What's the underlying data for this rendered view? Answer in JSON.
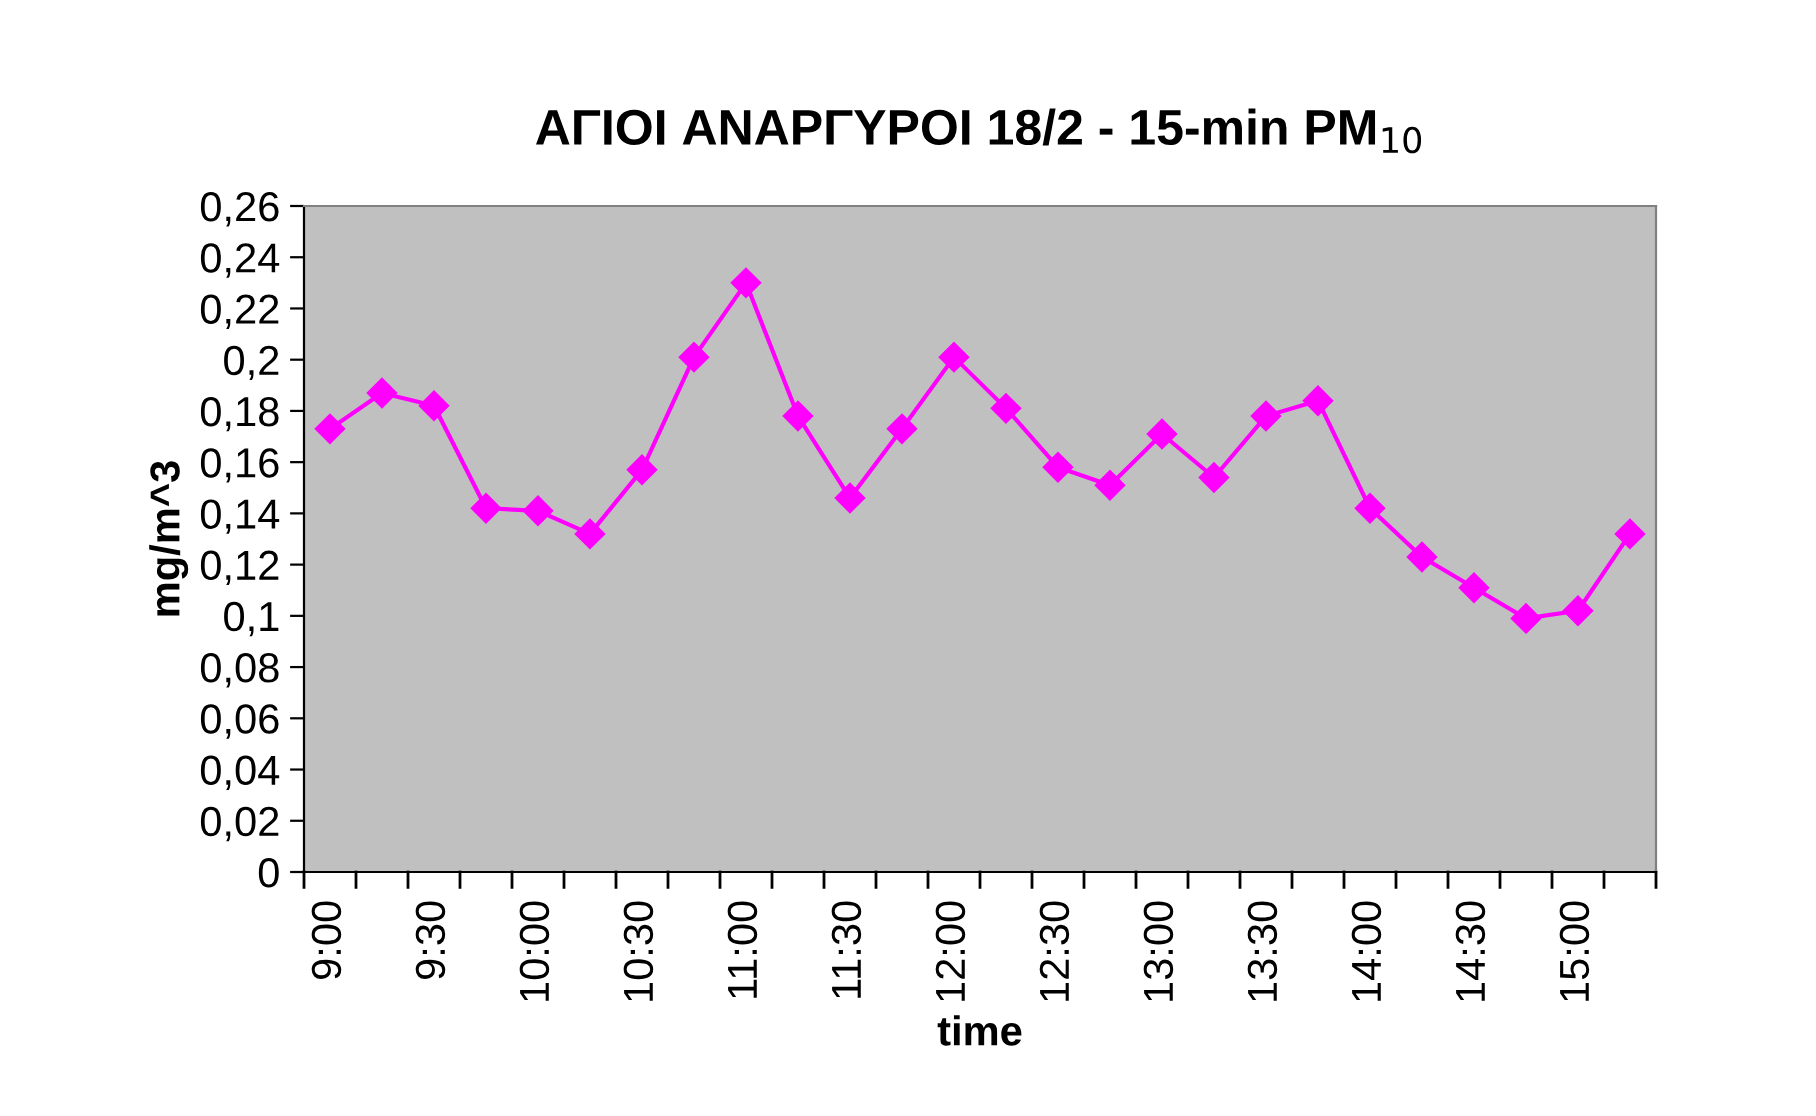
{
  "chart_data": {
    "type": "line",
    "title": "ΑΓΙΟΙ ΑΝΑΡΓΥΡΟΙ 18/2 - 15-min PM$_{10}$",
    "xlabel": "time",
    "ylabel": "mg/m^3",
    "categories": [
      "9:00",
      null,
      "9:30",
      null,
      "10:00",
      null,
      "10:30",
      null,
      "11:00",
      null,
      "11:30",
      null,
      "12:00",
      null,
      "12:30",
      null,
      "13:00",
      null,
      "13:30",
      null,
      "14:00",
      null,
      "14:30",
      null,
      "15:00",
      null
    ],
    "series": [
      {
        "color": "#ff00ff",
        "values": [
          0.173,
          0.187,
          0.182,
          0.142,
          0.141,
          0.132,
          0.157,
          0.201,
          0.23,
          0.178,
          0.146,
          0.173,
          0.201,
          0.181,
          0.158,
          0.151,
          0.171,
          0.154,
          0.178,
          0.184,
          0.142,
          0.123,
          0.111,
          0.099,
          0.102,
          0.132
        ]
      }
    ],
    "ylim": [
      0,
      0.26
    ],
    "yticks": [
      0,
      {
        "value": 0.02,
        "label": "0,02"
      },
      {
        "value": 0.04,
        "label": "0,04"
      },
      {
        "value": 0.06,
        "label": "0,06"
      },
      {
        "value": 0.08,
        "label": "0,08"
      },
      {
        "value": 0.1,
        "label": "0,1"
      },
      {
        "value": 0.12,
        "label": "0,12"
      },
      {
        "value": 0.14,
        "label": "0,14"
      },
      {
        "value": 0.16,
        "label": "0,16"
      },
      {
        "value": 0.18,
        "label": "0,18"
      },
      {
        "value": 0.2,
        "label": "0,2"
      },
      {
        "value": 0.22,
        "label": "0,22"
      },
      {
        "value": 0.24,
        "label": "0,24"
      },
      {
        "value": 0.26,
        "label": "0,26"
      }
    ],
    "grid": false,
    "legend": false,
    "marker": "diamond",
    "line_style": "solid"
  }
}
